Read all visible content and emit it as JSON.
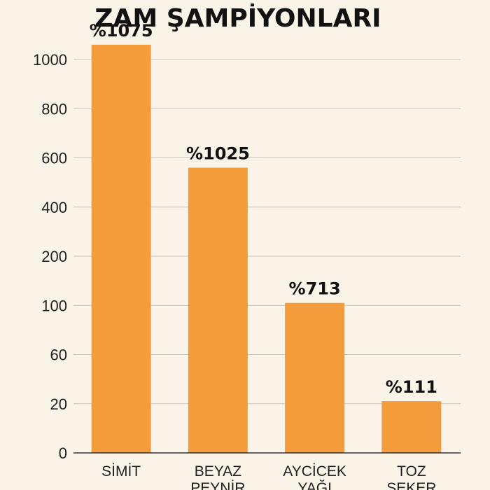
{
  "chart_data": {
    "type": "bar",
    "title": "ZAM ŞAMPİYONLARI",
    "xlabel": "",
    "ylabel": "",
    "categories": [
      [
        "SİMİT"
      ],
      [
        "BEYAZ",
        "PEYNİR"
      ],
      [
        "AYCİCEK",
        "YAĞI"
      ],
      [
        "TOZ",
        "ŞEKER"
      ]
    ],
    "yticks": [
      "0",
      "20",
      "60",
      "100",
      "200",
      "400",
      "600",
      "800",
      "1000"
    ],
    "bar_tick_level": [
      8.3,
      5.8,
      3.05,
      1.05
    ],
    "values": [
      1075,
      1025,
      713,
      111
    ],
    "data_labels": [
      "%1075",
      "%1025",
      "%713",
      "%111"
    ],
    "colors": {
      "bar": "#f49b3c",
      "background": "#faf3e8",
      "grid": "#c9c4bc",
      "text": "#111111"
    },
    "grid": true,
    "legend": "none"
  }
}
